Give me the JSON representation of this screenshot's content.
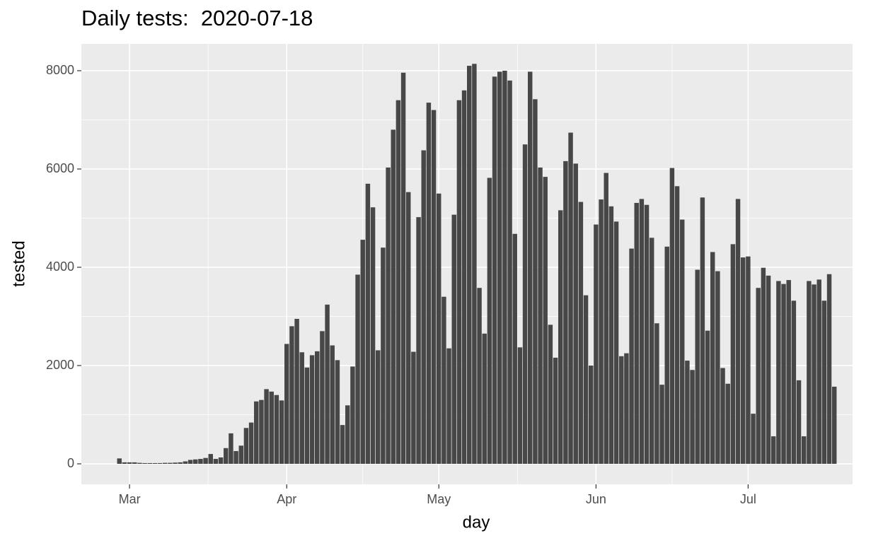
{
  "chart_data": {
    "type": "bar",
    "title": "Daily tests:  2020-07-18",
    "x_label": "day",
    "y_label": "tested",
    "categories": [
      null,
      null,
      null,
      null,
      null,
      null,
      null,
      null,
      null,
      null,
      null,
      null,
      null,
      null,
      null,
      null,
      null,
      null,
      null,
      null,
      null,
      null,
      null,
      null,
      null,
      null,
      null,
      null,
      null,
      null,
      null,
      null,
      null,
      null,
      null,
      null,
      null,
      null,
      null,
      null,
      null,
      null,
      null,
      null,
      null,
      null,
      null,
      null,
      null,
      null,
      null,
      null,
      null,
      null,
      null,
      null,
      null,
      null,
      null,
      null,
      null,
      null,
      null,
      null,
      null,
      null,
      null,
      null,
      null,
      null,
      null,
      null,
      null,
      null,
      null,
      null,
      null,
      null,
      null,
      null,
      null,
      null,
      null,
      null,
      null,
      null,
      null,
      null,
      null,
      null,
      null,
      null,
      null,
      null,
      null,
      null,
      null,
      null,
      null,
      null,
      null,
      null,
      null,
      null,
      null,
      null,
      null,
      null,
      null,
      null,
      null,
      null,
      null,
      null,
      null,
      null,
      null,
      null,
      null,
      null,
      null,
      null,
      null,
      null,
      null,
      null,
      null,
      null,
      null,
      null,
      null,
      null,
      null,
      null,
      null,
      null,
      null,
      null,
      null,
      null,
      null,
      null
    ],
    "values": [
      110,
      30,
      30,
      30,
      20,
      15,
      15,
      15,
      15,
      20,
      20,
      25,
      30,
      50,
      80,
      90,
      100,
      120,
      200,
      100,
      130,
      320,
      620,
      260,
      370,
      730,
      840,
      1270,
      1300,
      1520,
      1470,
      1400,
      1290,
      2440,
      2800,
      2950,
      2270,
      1960,
      2210,
      2290,
      2700,
      3240,
      2410,
      2110,
      790,
      1190,
      1980,
      3850,
      4560,
      5700,
      5220,
      2310,
      4400,
      6030,
      6800,
      7400,
      7960,
      5530,
      2280,
      5020,
      6380,
      7350,
      7200,
      5500,
      3400,
      2350,
      5070,
      7400,
      7600,
      8100,
      8140,
      3580,
      2650,
      5820,
      7880,
      7980,
      8000,
      7800,
      4680,
      2370,
      6500,
      7980,
      7420,
      6030,
      5840,
      2830,
      2160,
      5160,
      6160,
      6740,
      6110,
      5330,
      3430,
      2000,
      4870,
      5380,
      5920,
      5240,
      4930,
      2190,
      2250,
      4380,
      5310,
      5390,
      5270,
      4600,
      2860,
      1610,
      4420,
      6020,
      5650,
      4970,
      2100,
      1910,
      3950,
      5420,
      2710,
      4310,
      3920,
      1950,
      1630,
      4470,
      5390,
      4200,
      4220,
      1020,
      3580,
      3990,
      3830,
      560,
      3720,
      3660,
      3740,
      3320,
      1700,
      560,
      3720,
      3650,
      3750,
      3320,
      3860,
      1570
    ],
    "color": "#474747",
    "xlim": [
      -7.5,
      144.6
    ],
    "xticks": [
      {
        "value": 2,
        "label": "Mar"
      },
      {
        "value": 33,
        "label": "Apr"
      },
      {
        "value": 63,
        "label": "May"
      },
      {
        "value": 94,
        "label": "Jun"
      },
      {
        "value": 124,
        "label": "Jul"
      }
    ],
    "ylim": [
      -417,
      8547
    ],
    "yticks": [
      0,
      2000,
      4000,
      6000,
      8000
    ],
    "grid": true
  }
}
